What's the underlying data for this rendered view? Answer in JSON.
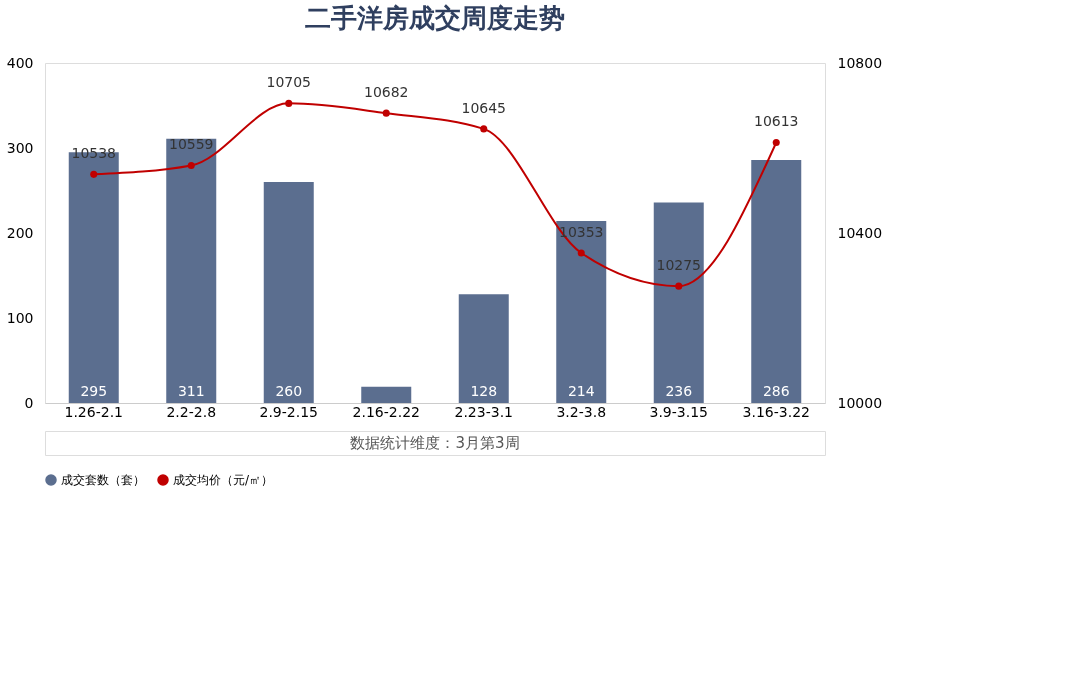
{
  "chart_data": {
    "type": "bar",
    "title": "二手洋房成交周度走势",
    "categories": [
      "1.26-2.1",
      "2.2-2.8",
      "2.9-2.15",
      "2.16-2.22",
      "2.23-3.1",
      "3.2-3.8",
      "3.9-3.15",
      "3.16-3.22"
    ],
    "series": [
      {
        "name": "成交套数（套）",
        "color": "#5b6e8f",
        "values": [
          295,
          311,
          260,
          19,
          128,
          214,
          236,
          286
        ],
        "value_labels": [
          "295",
          "311",
          "260",
          null,
          "128",
          "214",
          "236",
          "286"
        ]
      },
      {
        "name": "成交均价（元/㎡）",
        "type": "line",
        "axis": "y2",
        "color": "#c00000",
        "marker": "circle",
        "values": [
          10538,
          10559,
          10705,
          10682,
          10645,
          10353,
          10275,
          10613
        ],
        "value_labels": [
          "10538",
          "10559",
          "10705",
          "10682",
          "10645",
          "10353",
          "10275",
          "10613"
        ]
      }
    ],
    "ylim": [
      0,
      400
    ],
    "yticks": [
      0,
      100,
      200,
      300,
      400
    ],
    "y2lim": [
      10000,
      10800
    ],
    "y2ticks": [
      10000,
      10400,
      10800
    ],
    "grid": false,
    "legend": "bottom",
    "annotations": [
      "数据统计维度：3月第3周"
    ]
  }
}
